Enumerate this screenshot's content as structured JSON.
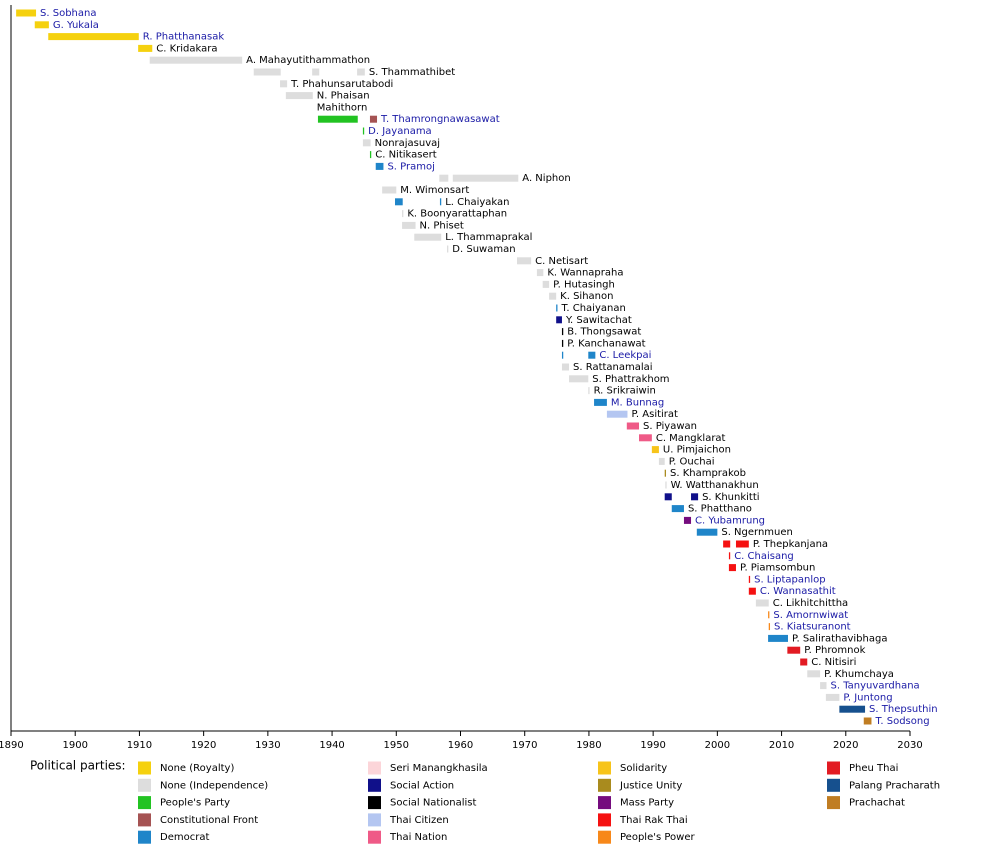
{
  "chart_data": {
    "type": "timeline",
    "xlim": [
      1890,
      2030
    ],
    "xticks": [
      1890,
      1900,
      1910,
      1920,
      1930,
      1940,
      1950,
      1960,
      1970,
      1980,
      1990,
      2000,
      2010,
      2020,
      2030
    ],
    "legend_title": "Political parties:",
    "parties": [
      {
        "name": "None (Royalty)",
        "color": "#f5d10f"
      },
      {
        "name": "None (Independence)",
        "color": "#dddddd"
      },
      {
        "name": "People's Party",
        "color": "#22c322"
      },
      {
        "name": "Constitutional Front",
        "color": "#a55353"
      },
      {
        "name": "Democrat",
        "color": "#1f85c9"
      },
      {
        "name": "Seri Manangkhasila",
        "color": "#fcd5d9"
      },
      {
        "name": "Social Action",
        "color": "#10108a"
      },
      {
        "name": "Social Nationalist",
        "color": "#000000"
      },
      {
        "name": "Thai Citizen",
        "color": "#b4c6f1"
      },
      {
        "name": "Thai Nation",
        "color": "#ef5a87"
      },
      {
        "name": "Solidarity",
        "color": "#f7c41a"
      },
      {
        "name": "Justice Unity",
        "color": "#a98b1e"
      },
      {
        "name": "Mass Party",
        "color": "#750c7e"
      },
      {
        "name": "Thai Rak Thai",
        "color": "#f51111"
      },
      {
        "name": "People's Power",
        "color": "#f7881a"
      },
      {
        "name": "Pheu Thai",
        "color": "#e21b23"
      },
      {
        "name": "Palang Pracharath",
        "color": "#16508e"
      },
      {
        "name": "Prachachat",
        "color": "#c07d22"
      }
    ],
    "rows": [
      {
        "name": "S. Sobhana",
        "linked": true,
        "segments": [
          {
            "start": 1890.8,
            "end": 1893.9,
            "party": 0
          }
        ]
      },
      {
        "name": "G. Yukala",
        "linked": true,
        "segments": [
          {
            "start": 1893.7,
            "end": 1895.9,
            "party": 0
          }
        ]
      },
      {
        "name": "R. Phatthanasak",
        "linked": true,
        "segments": [
          {
            "start": 1895.8,
            "end": 1909.9,
            "party": 0
          }
        ]
      },
      {
        "name": "C. Kridakara",
        "linked": false,
        "segments": [
          {
            "start": 1909.8,
            "end": 1912.0,
            "party": 0
          }
        ]
      },
      {
        "name": "A. Mahayutithammathon",
        "linked": false,
        "segments": [
          {
            "start": 1911.6,
            "end": 1926.0,
            "party": 1
          }
        ]
      },
      {
        "name": "S. Thammathibet",
        "linked": false,
        "segments": [
          {
            "start": 1927.8,
            "end": 1932.0,
            "party": 1
          },
          {
            "start": 1936.9,
            "end": 1938.0,
            "party": 1
          },
          {
            "start": 1943.9,
            "end": 1945.1,
            "party": 1
          }
        ]
      },
      {
        "name": "T. Phahunsarutabodi",
        "linked": false,
        "segments": [
          {
            "start": 1931.9,
            "end": 1933.0,
            "party": 1
          }
        ]
      },
      {
        "name": "N. Phaisan",
        "linked": false,
        "segments": [
          {
            "start": 1932.8,
            "end": 1937.0,
            "party": 1
          }
        ]
      },
      {
        "name": "Mahithorn",
        "linked": false,
        "segments": []
      },
      {
        "name": "T. Thamrongnawasawat",
        "linked": true,
        "segments": [
          {
            "start": 1937.8,
            "end": 1944.0,
            "party": 2
          },
          {
            "start": 1945.9,
            "end": 1947.0,
            "party": 3
          }
        ]
      },
      {
        "name": "D. Jayanama",
        "linked": true,
        "segments": [
          {
            "start": 1944.8,
            "end": 1945.0,
            "party": 2
          }
        ]
      },
      {
        "name": "Nonrajasuvaj",
        "linked": false,
        "segments": [
          {
            "start": 1944.8,
            "end": 1946.0,
            "party": 1
          }
        ]
      },
      {
        "name": "C. Nitikasert",
        "linked": false,
        "segments": [
          {
            "start": 1945.9,
            "end": 1946.1,
            "party": 2
          }
        ]
      },
      {
        "name": "S. Pramoj",
        "linked": true,
        "segments": [
          {
            "start": 1946.8,
            "end": 1948.0,
            "party": 4
          }
        ]
      },
      {
        "name": "A. Niphon",
        "linked": false,
        "segments": [
          {
            "start": 1956.7,
            "end": 1958.1,
            "party": 1
          },
          {
            "start": 1958.8,
            "end": 1969.0,
            "party": 1
          }
        ]
      },
      {
        "name": "M. Wimonsart",
        "linked": false,
        "segments": [
          {
            "start": 1947.8,
            "end": 1950.0,
            "party": 1
          }
        ]
      },
      {
        "name": "L. Chaiyakan",
        "linked": false,
        "segments": [
          {
            "start": 1949.8,
            "end": 1951.0,
            "party": 4
          },
          {
            "start": 1956.8,
            "end": 1957.0,
            "party": 4
          }
        ]
      },
      {
        "name": "K. Boonyarattaphan",
        "linked": false,
        "segments": [
          {
            "start": 1950.9,
            "end": 1951.1,
            "party": 1
          }
        ]
      },
      {
        "name": "N. Phiset",
        "linked": false,
        "segments": [
          {
            "start": 1950.9,
            "end": 1953.0,
            "party": 1
          }
        ]
      },
      {
        "name": "L. Thammaprakal",
        "linked": false,
        "segments": [
          {
            "start": 1952.8,
            "end": 1957.0,
            "party": 1
          }
        ]
      },
      {
        "name": "D. Suwaman",
        "linked": false,
        "segments": [
          {
            "start": 1957.9,
            "end": 1958.1,
            "party": 1
          }
        ]
      },
      {
        "name": "C. Netisart",
        "linked": false,
        "segments": [
          {
            "start": 1968.8,
            "end": 1971.0,
            "party": 1
          }
        ]
      },
      {
        "name": "K. Wannapraha",
        "linked": false,
        "segments": [
          {
            "start": 1971.9,
            "end": 1972.9,
            "party": 1
          }
        ]
      },
      {
        "name": "P. Hutasingh",
        "linked": false,
        "segments": [
          {
            "start": 1972.8,
            "end": 1973.8,
            "party": 1
          }
        ]
      },
      {
        "name": "K. Sihanon",
        "linked": false,
        "segments": [
          {
            "start": 1973.8,
            "end": 1974.9,
            "party": 1
          }
        ]
      },
      {
        "name": "T. Chaiyanan",
        "linked": false,
        "segments": [
          {
            "start": 1974.9,
            "end": 1975.1,
            "party": 4
          }
        ]
      },
      {
        "name": "Y. Sawitachat",
        "linked": false,
        "segments": [
          {
            "start": 1974.9,
            "end": 1975.8,
            "party": 6
          }
        ]
      },
      {
        "name": "B. Thongsawat",
        "linked": false,
        "segments": [
          {
            "start": 1975.8,
            "end": 1976.0,
            "party": 7
          }
        ]
      },
      {
        "name": "P. Kanchanawat",
        "linked": false,
        "segments": [
          {
            "start": 1975.8,
            "end": 1976.0,
            "party": 7
          }
        ]
      },
      {
        "name": "C. Leekpai",
        "linked": true,
        "segments": [
          {
            "start": 1975.8,
            "end": 1976.0,
            "party": 4
          },
          {
            "start": 1979.9,
            "end": 1981.0,
            "party": 4
          }
        ]
      },
      {
        "name": "S. Rattanamalai",
        "linked": false,
        "segments": [
          {
            "start": 1975.8,
            "end": 1976.9,
            "party": 1
          }
        ]
      },
      {
        "name": "S. Phattrakhom",
        "linked": false,
        "segments": [
          {
            "start": 1976.9,
            "end": 1979.9,
            "party": 1
          }
        ]
      },
      {
        "name": "R. Srikraiwin",
        "linked": false,
        "segments": [
          {
            "start": 1979.9,
            "end": 1980.1,
            "party": 1
          }
        ]
      },
      {
        "name": "M. Bunnag",
        "linked": true,
        "segments": [
          {
            "start": 1980.8,
            "end": 1982.8,
            "party": 4
          }
        ]
      },
      {
        "name": "P. Asitirat",
        "linked": false,
        "segments": [
          {
            "start": 1982.8,
            "end": 1986.0,
            "party": 8
          }
        ]
      },
      {
        "name": "S. Piyawan",
        "linked": false,
        "segments": [
          {
            "start": 1985.9,
            "end": 1987.8,
            "party": 9
          }
        ]
      },
      {
        "name": "C. Mangklarat",
        "linked": false,
        "segments": [
          {
            "start": 1987.8,
            "end": 1989.8,
            "party": 9
          }
        ]
      },
      {
        "name": "U. Pimjaichon",
        "linked": false,
        "segments": [
          {
            "start": 1989.8,
            "end": 1990.9,
            "party": 10
          }
        ]
      },
      {
        "name": "P. Ouchai",
        "linked": false,
        "segments": [
          {
            "start": 1990.9,
            "end": 1991.8,
            "party": 1
          }
        ]
      },
      {
        "name": "S. Khamprakob",
        "linked": false,
        "segments": [
          {
            "start": 1991.8,
            "end": 1992.0,
            "party": 11
          }
        ]
      },
      {
        "name": "W. Watthanakhun",
        "linked": false,
        "segments": [
          {
            "start": 1991.9,
            "end": 1992.1,
            "party": 1
          }
        ]
      },
      {
        "name": "S. Khunkitti",
        "linked": false,
        "segments": [
          {
            "start": 1991.8,
            "end": 1992.9,
            "party": 6
          },
          {
            "start": 1995.9,
            "end": 1997.0,
            "party": 6
          }
        ]
      },
      {
        "name": "S. Phatthano",
        "linked": false,
        "segments": [
          {
            "start": 1992.9,
            "end": 1994.8,
            "party": 4
          }
        ]
      },
      {
        "name": "C. Yubamrung",
        "linked": true,
        "segments": [
          {
            "start": 1994.8,
            "end": 1995.9,
            "party": 12
          }
        ]
      },
      {
        "name": "S. Ngernmuen",
        "linked": false,
        "segments": [
          {
            "start": 1996.8,
            "end": 2000.0,
            "party": 4
          }
        ]
      },
      {
        "name": "P. Thepkanjana",
        "linked": false,
        "segments": [
          {
            "start": 2000.9,
            "end": 2002.0,
            "party": 13
          },
          {
            "start": 2002.9,
            "end": 2004.9,
            "party": 13
          }
        ]
      },
      {
        "name": "C. Chaisang",
        "linked": true,
        "segments": [
          {
            "start": 2001.8,
            "end": 2002.0,
            "party": 13
          }
        ]
      },
      {
        "name": "P. Piamsombun",
        "linked": false,
        "segments": [
          {
            "start": 2001.8,
            "end": 2002.9,
            "party": 13
          }
        ]
      },
      {
        "name": "S. Liptapanlop",
        "linked": true,
        "segments": [
          {
            "start": 2004.9,
            "end": 2005.1,
            "party": 13
          }
        ]
      },
      {
        "name": "C. Wannasathit",
        "linked": true,
        "segments": [
          {
            "start": 2004.9,
            "end": 2006.0,
            "party": 13
          }
        ]
      },
      {
        "name": "C. Likhitchittha",
        "linked": false,
        "segments": [
          {
            "start": 2006.0,
            "end": 2008.0,
            "party": 1
          }
        ]
      },
      {
        "name": "S. Amornwiwat",
        "linked": true,
        "segments": [
          {
            "start": 2007.9,
            "end": 2008.1,
            "party": 14
          }
        ]
      },
      {
        "name": "S. Kiatsuranont",
        "linked": true,
        "segments": [
          {
            "start": 2008.0,
            "end": 2008.2,
            "party": 14
          }
        ]
      },
      {
        "name": "P. Salirathavibhaga",
        "linked": false,
        "segments": [
          {
            "start": 2007.9,
            "end": 2011.0,
            "party": 4
          }
        ]
      },
      {
        "name": "P. Phromnok",
        "linked": false,
        "segments": [
          {
            "start": 2010.9,
            "end": 2012.9,
            "party": 15
          }
        ]
      },
      {
        "name": "C. Nitisiri",
        "linked": false,
        "segments": [
          {
            "start": 2012.9,
            "end": 2014.0,
            "party": 15
          }
        ]
      },
      {
        "name": "P. Khumchaya",
        "linked": false,
        "segments": [
          {
            "start": 2014.0,
            "end": 2016.0,
            "party": 1
          }
        ]
      },
      {
        "name": "S. Tanyuvardhana",
        "linked": true,
        "segments": [
          {
            "start": 2016.0,
            "end": 2017.0,
            "party": 1
          }
        ]
      },
      {
        "name": "P. Juntong",
        "linked": true,
        "segments": [
          {
            "start": 2016.9,
            "end": 2019.0,
            "party": 1
          }
        ]
      },
      {
        "name": "S. Thepsuthin",
        "linked": true,
        "segments": [
          {
            "start": 2019.0,
            "end": 2023.0,
            "party": 16
          }
        ]
      },
      {
        "name": "T. Sodsong",
        "linked": true,
        "segments": [
          {
            "start": 2022.8,
            "end": 2024.0,
            "party": 17
          }
        ]
      }
    ]
  }
}
